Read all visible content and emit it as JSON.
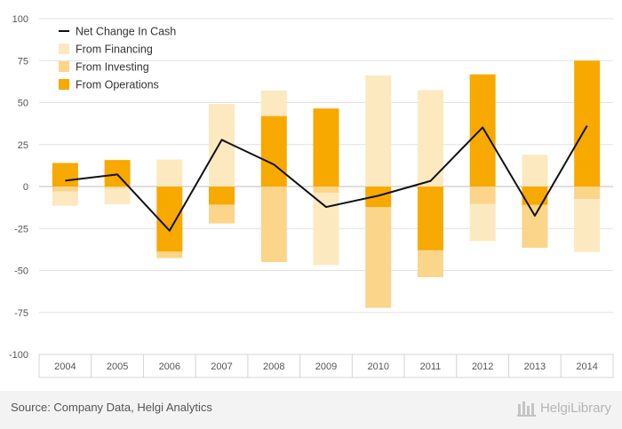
{
  "chart_data": {
    "type": "bar",
    "stacked": true,
    "categories": [
      "2004",
      "2005",
      "2006",
      "2007",
      "2008",
      "2009",
      "2010",
      "2011",
      "2012",
      "2013",
      "2014"
    ],
    "ylim": [
      -100,
      100
    ],
    "yticks": [
      100,
      75,
      50,
      25,
      0,
      -25,
      -50,
      -75,
      -100
    ],
    "grid": true,
    "legend_position": "top-left",
    "series": [
      {
        "name": "Net Change In Cash",
        "kind": "line",
        "color": "#111111",
        "values": [
          3.5,
          7.2,
          -26.3,
          27.8,
          13.1,
          -12.2,
          -5.5,
          3.3,
          35.2,
          -17.4,
          36.2
        ]
      },
      {
        "name": "From Financing",
        "kind": "bar",
        "color": "#fde9c0",
        "values": [
          -8.5,
          -9.5,
          16.1,
          49.2,
          15.2,
          -43.0,
          66.2,
          57.5,
          -22.0,
          19.0,
          -31.5
        ]
      },
      {
        "name": "From Investing",
        "kind": "bar",
        "color": "#fbd58a",
        "values": [
          -3.0,
          -1.0,
          -3.8,
          -11.2,
          -45.0,
          -3.8,
          -60.0,
          -16.0,
          -10.5,
          -25.5,
          -7.5
        ]
      },
      {
        "name": "From Operations",
        "kind": "bar",
        "color": "#f7a900",
        "values": [
          14.0,
          15.8,
          -38.8,
          -10.8,
          42.0,
          46.5,
          -12.3,
          -38.0,
          66.8,
          -11.0,
          75.0
        ]
      }
    ]
  },
  "footer": {
    "source": "Source: Company Data, Helgi Analytics",
    "brand": "HelgiLibrary"
  }
}
